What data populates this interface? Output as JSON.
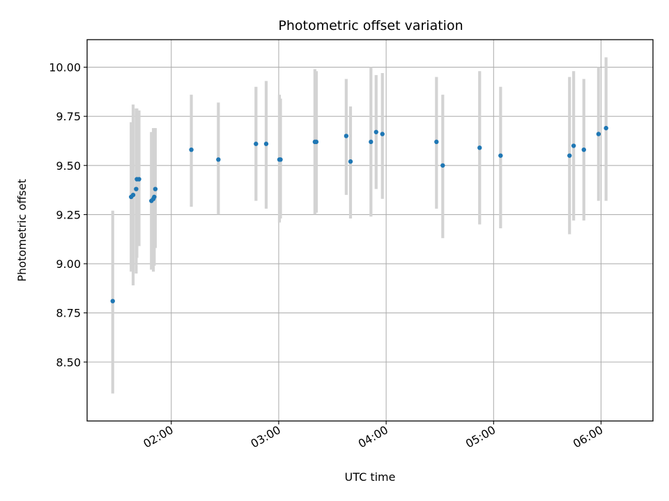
{
  "chart_data": {
    "type": "scatter",
    "title": "Photometric offset variation",
    "xlabel": "UTC time",
    "ylabel": "Photometric offset",
    "grid": true,
    "xlim": [
      73,
      389
    ],
    "ylim": [
      8.2,
      10.14
    ],
    "xticks": [
      {
        "minutes": 120,
        "label": "02:00"
      },
      {
        "minutes": 180,
        "label": "03:00"
      },
      {
        "minutes": 240,
        "label": "04:00"
      },
      {
        "minutes": 300,
        "label": "05:00"
      },
      {
        "minutes": 360,
        "label": "06:00"
      }
    ],
    "yticks": [
      {
        "value": 8.5,
        "label": "8.50"
      },
      {
        "value": 8.75,
        "label": "8.75"
      },
      {
        "value": 9.0,
        "label": "9.00"
      },
      {
        "value": 9.25,
        "label": "9.25"
      },
      {
        "value": 9.5,
        "label": "9.50"
      },
      {
        "value": 9.75,
        "label": "9.75"
      },
      {
        "value": 10.0,
        "label": "10.00"
      }
    ],
    "x_unit": "minutes since 00:00 UTC",
    "points": [
      {
        "x": 87.3,
        "y": 8.81,
        "ylo": 8.34,
        "yhi": 9.27
      },
      {
        "x": 97.6,
        "y": 9.34,
        "ylo": 8.96,
        "yhi": 9.72
      },
      {
        "x": 98.7,
        "y": 9.35,
        "ylo": 8.89,
        "yhi": 9.81
      },
      {
        "x": 100.4,
        "y": 9.38,
        "ylo": 8.95,
        "yhi": 9.79
      },
      {
        "x": 100.8,
        "y": 9.43,
        "ylo": 9.03,
        "yhi": 9.79
      },
      {
        "x": 102.0,
        "y": 9.43,
        "ylo": 9.09,
        "yhi": 9.78
      },
      {
        "x": 108.9,
        "y": 9.32,
        "ylo": 8.97,
        "yhi": 9.67
      },
      {
        "x": 110.0,
        "y": 9.33,
        "ylo": 8.96,
        "yhi": 9.69
      },
      {
        "x": 110.5,
        "y": 9.34,
        "ylo": 8.99,
        "yhi": 9.69
      },
      {
        "x": 111.1,
        "y": 9.38,
        "ylo": 9.08,
        "yhi": 9.69
      },
      {
        "x": 131.2,
        "y": 9.58,
        "ylo": 9.29,
        "yhi": 9.86
      },
      {
        "x": 146.3,
        "y": 9.53,
        "ylo": 9.25,
        "yhi": 9.82
      },
      {
        "x": 167.3,
        "y": 9.61,
        "ylo": 9.32,
        "yhi": 9.9
      },
      {
        "x": 173.0,
        "y": 9.61,
        "ylo": 9.28,
        "yhi": 9.93
      },
      {
        "x": 180.4,
        "y": 9.53,
        "ylo": 9.21,
        "yhi": 9.86
      },
      {
        "x": 181.0,
        "y": 9.53,
        "ylo": 9.23,
        "yhi": 9.84
      },
      {
        "x": 200.2,
        "y": 9.62,
        "ylo": 9.25,
        "yhi": 9.99
      },
      {
        "x": 201.0,
        "y": 9.62,
        "ylo": 9.26,
        "yhi": 9.98
      },
      {
        "x": 217.7,
        "y": 9.65,
        "ylo": 9.35,
        "yhi": 9.94
      },
      {
        "x": 220.1,
        "y": 9.52,
        "ylo": 9.23,
        "yhi": 9.8
      },
      {
        "x": 231.5,
        "y": 9.62,
        "ylo": 9.24,
        "yhi": 10.0
      },
      {
        "x": 234.4,
        "y": 9.67,
        "ylo": 9.38,
        "yhi": 9.96
      },
      {
        "x": 237.9,
        "y": 9.66,
        "ylo": 9.33,
        "yhi": 9.97
      },
      {
        "x": 268.1,
        "y": 9.62,
        "ylo": 9.28,
        "yhi": 9.95
      },
      {
        "x": 271.6,
        "y": 9.5,
        "ylo": 9.13,
        "yhi": 9.86
      },
      {
        "x": 292.2,
        "y": 9.59,
        "ylo": 9.2,
        "yhi": 9.98
      },
      {
        "x": 303.9,
        "y": 9.55,
        "ylo": 9.18,
        "yhi": 9.9
      },
      {
        "x": 342.4,
        "y": 9.55,
        "ylo": 9.15,
        "yhi": 9.95
      },
      {
        "x": 344.7,
        "y": 9.6,
        "ylo": 9.22,
        "yhi": 9.98
      },
      {
        "x": 350.4,
        "y": 9.58,
        "ylo": 9.22,
        "yhi": 9.94
      },
      {
        "x": 358.6,
        "y": 9.66,
        "ylo": 9.32,
        "yhi": 10.0
      },
      {
        "x": 362.8,
        "y": 9.69,
        "ylo": 9.32,
        "yhi": 10.05
      }
    ],
    "colors": {
      "marker": "#1f77b4",
      "errorbar": "#d3d3d3",
      "grid": "#b0b0b0",
      "axes": "#000000"
    }
  }
}
